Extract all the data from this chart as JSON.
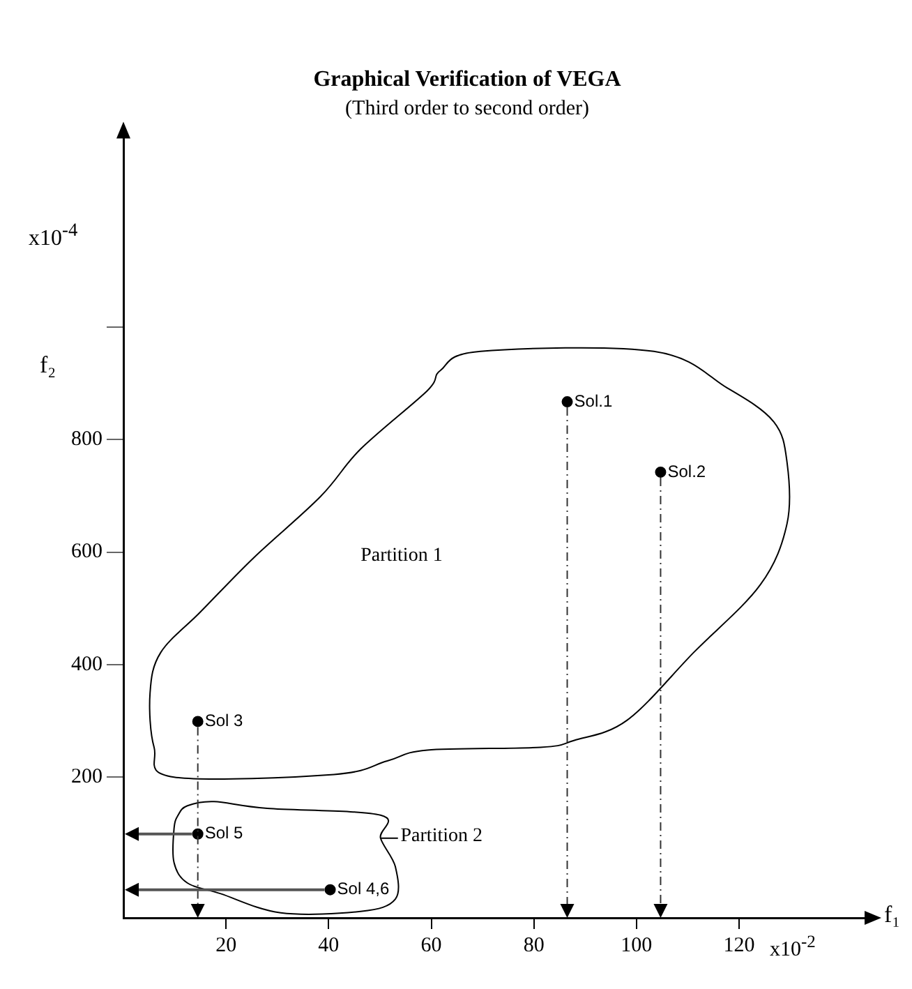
{
  "chart_data": {
    "type": "scatter",
    "title": "Graphical Verification of VEGA",
    "subtitle": "(Third order to second order)",
    "xlabel": "f₁",
    "ylabel": "f₂",
    "x": [
      86.5,
      104.7,
      14.5,
      14.5,
      40.3
    ],
    "values": [
      867,
      742,
      299,
      99,
      0
    ],
    "color": "#000000",
    "marker": "circle",
    "grid": false,
    "legend": false,
    "xlim": [
      0,
      145
    ],
    "ylim": [
      -50,
      1340
    ],
    "xticks": [
      20,
      40,
      60,
      80,
      100,
      120
    ],
    "yticks": [
      200,
      400,
      600,
      800,
      {
        "value": 1000,
        "label": null
      }
    ],
    "annotations": [
      {
        "text": "Sol.1",
        "x": 86.5,
        "y": 867
      },
      {
        "text": "Sol.2",
        "x": 104.7,
        "y": 742
      },
      {
        "text": "Sol 3",
        "x": 14.5,
        "y": 299
      },
      {
        "text": "Sol 5",
        "x": 14.5,
        "y": 99
      },
      {
        "text": "Sol 4,6",
        "x": 40.3,
        "y": 0
      },
      "Partition 1",
      "Partition 2",
      "x10$^{-4}$",
      "x10$^{-2}$"
    ]
  }
}
